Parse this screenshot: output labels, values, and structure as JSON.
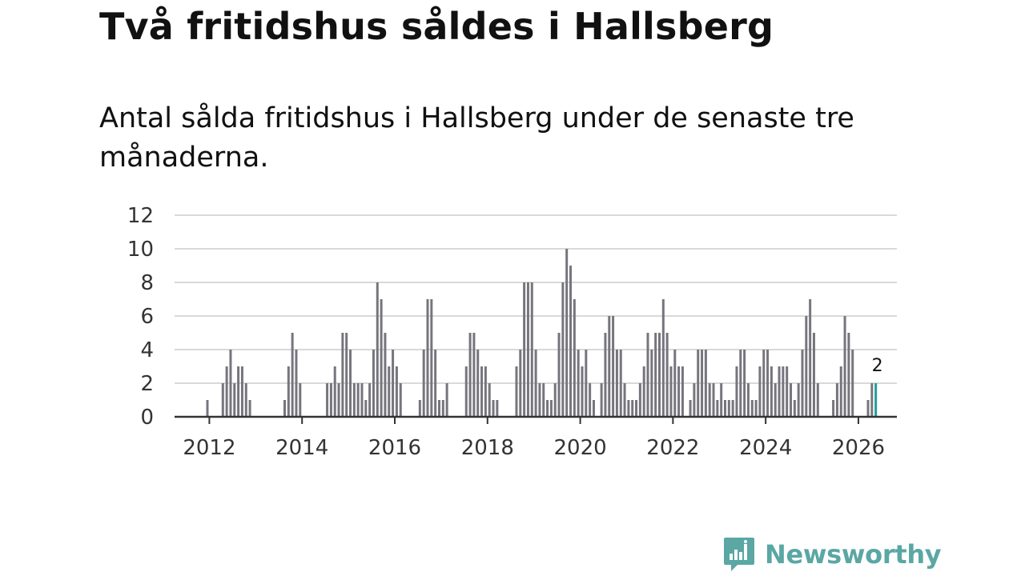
{
  "title": "Två fritidshus såldes i Hallsberg",
  "subtitle": "Antal sålda fritidshus i Hallsberg under de senaste tre månaderna.",
  "brand": {
    "name": "Newsworthy"
  },
  "colors": {
    "bar": "#76757d",
    "highlight": "#1d9e99",
    "grid": "#d9d9d9",
    "axis": "#333333",
    "brand": "#5aa7a4"
  },
  "chart_data": {
    "type": "bar",
    "title": "Två fritidshus såldes i Hallsberg",
    "xlabel": "",
    "ylabel": "",
    "ylim": [
      0,
      12
    ],
    "yticks": [
      0,
      2,
      4,
      6,
      8,
      10,
      12
    ],
    "xticks": [
      2012,
      2014,
      2016,
      2018,
      2020,
      2022,
      2024,
      2026
    ],
    "xtick_labels": [
      "2012",
      "2014",
      "2016",
      "2018",
      "2020",
      "2022",
      "2024",
      "2026"
    ],
    "xlim": [
      2011.25,
      2026.83
    ],
    "start_year": 2011,
    "start_month": 5,
    "highlight_label": "2",
    "values": [
      0,
      0,
      0,
      0,
      0,
      0,
      0,
      1,
      0,
      0,
      0,
      2,
      3,
      4,
      2,
      3,
      3,
      2,
      1,
      0,
      0,
      0,
      0,
      0,
      0,
      0,
      0,
      1,
      3,
      5,
      4,
      2,
      0,
      0,
      0,
      0,
      0,
      0,
      2,
      2,
      3,
      2,
      5,
      5,
      4,
      2,
      2,
      2,
      1,
      2,
      4,
      8,
      7,
      5,
      3,
      4,
      3,
      2,
      0,
      0,
      0,
      0,
      1,
      4,
      7,
      7,
      4,
      1,
      1,
      2,
      0,
      0,
      0,
      0,
      3,
      5,
      5,
      4,
      3,
      3,
      2,
      1,
      1,
      0,
      0,
      0,
      0,
      3,
      4,
      8,
      8,
      8,
      4,
      2,
      2,
      1,
      1,
      2,
      5,
      8,
      10,
      9,
      7,
      4,
      3,
      4,
      2,
      1,
      0,
      2,
      5,
      6,
      6,
      4,
      4,
      2,
      1,
      1,
      1,
      2,
      3,
      5,
      4,
      5,
      5,
      7,
      5,
      3,
      4,
      3,
      3,
      0,
      1,
      2,
      4,
      4,
      4,
      2,
      2,
      1,
      2,
      1,
      1,
      1,
      3,
      4,
      4,
      2,
      1,
      1,
      3,
      4,
      4,
      3,
      2,
      3,
      3,
      3,
      2,
      1,
      2,
      4,
      6,
      7,
      5,
      2,
      0,
      0,
      0,
      1,
      2,
      3,
      6,
      5,
      4,
      0,
      0,
      0,
      1,
      2,
      2
    ]
  }
}
